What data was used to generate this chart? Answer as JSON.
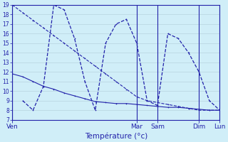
{
  "title": "",
  "xlabel": "Température (°c)",
  "ylabel": "",
  "bg_color": "#d0eef8",
  "grid_color": "#b0ccd8",
  "line_color": "#2222aa",
  "ylim": [
    7,
    19
  ],
  "yticks": [
    7,
    8,
    9,
    10,
    11,
    12,
    13,
    14,
    15,
    16,
    17,
    18,
    19
  ],
  "xlim": [
    0,
    20
  ],
  "day_positions": [
    0,
    12,
    14,
    18,
    20
  ],
  "xtick_labels": [
    "Ven",
    "Mar",
    "Sam",
    "Dim",
    "Lun"
  ],
  "lines": [
    {
      "x": [
        0,
        1,
        2,
        3,
        4,
        5,
        6,
        7,
        8,
        9,
        10,
        11,
        12,
        13,
        14,
        15,
        16,
        17,
        18,
        19,
        20
      ],
      "y": [
        19,
        18.2,
        17.4,
        16.6,
        15.8,
        15.0,
        14.2,
        13.4,
        12.6,
        11.8,
        11.0,
        10.2,
        9.4,
        9.0,
        8.8,
        8.6,
        8.4,
        8.2,
        8.0,
        8.0,
        8.0
      ]
    },
    {
      "x": [
        0,
        1,
        2,
        3,
        4,
        5,
        6,
        7,
        8,
        9,
        10,
        11,
        12,
        13,
        14,
        15,
        16,
        17,
        18,
        19,
        20
      ],
      "y": [
        11.8,
        11.5,
        11.0,
        10.5,
        10.2,
        9.8,
        9.5,
        9.2,
        8.9,
        8.8,
        8.7,
        8.7,
        8.6,
        8.5,
        8.4,
        8.3,
        8.3,
        8.2,
        8.1,
        8.0,
        8.0
      ]
    },
    {
      "x": [
        1,
        2,
        3,
        4,
        5,
        6,
        7,
        8,
        9,
        10,
        11,
        12,
        13,
        14,
        15,
        16,
        17,
        18,
        19,
        20
      ],
      "y": [
        9.0,
        8.0,
        10.5,
        19.0,
        18.5,
        15.5,
        11.0,
        8.0,
        15.0,
        17.0,
        17.5,
        15.0,
        9.0,
        8.5,
        16.0,
        15.5,
        14.0,
        12.0,
        9.0,
        8.0
      ]
    }
  ]
}
